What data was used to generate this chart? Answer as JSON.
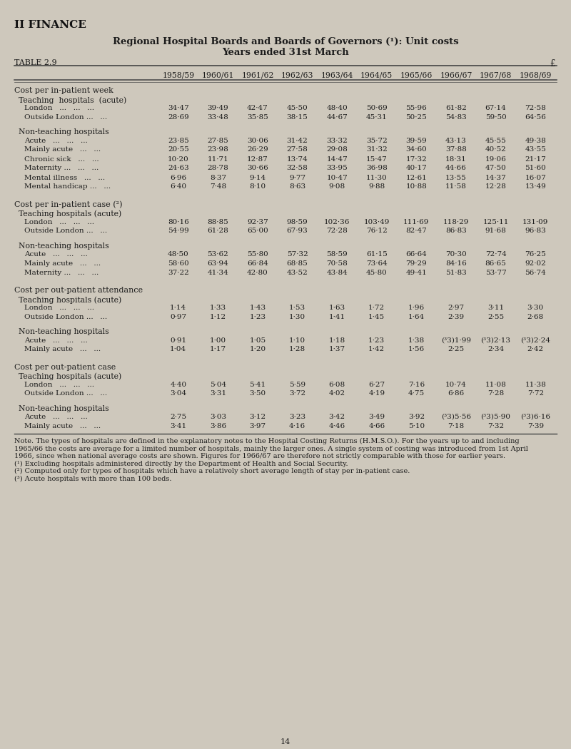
{
  "title1": "Regional Hospital Boards and Boards of Governors (¹): Unit costs",
  "title2": "Years ended 31st March",
  "table_label": "TABLE 2.9",
  "currency_symbol": "£",
  "columns": [
    "1958/59",
    "1960/61",
    "1961/62",
    "1962/63",
    "1963/64",
    "1964/65",
    "1965/66",
    "1966/67",
    "1967/68",
    "1968/69"
  ],
  "sections": [
    {
      "header": "Cost per in-patient week",
      "subsections": [
        {
          "header": "Teaching  hospitals  (acute)",
          "rows": [
            {
              "label": "London   ...   ...   ...",
              "values": [
                "34·47",
                "39·49",
                "42·47",
                "45·50",
                "48·40",
                "50·69",
                "55·96",
                "61·82",
                "67·14",
                "72·58"
              ]
            },
            {
              "label": "Outside London ...   ...",
              "values": [
                "28·69",
                "33·48",
                "35·85",
                "38·15",
                "44·67",
                "45·31",
                "50·25",
                "54·83",
                "59·50",
                "64·56"
              ]
            }
          ]
        },
        {
          "header": "Non-teaching hospitals",
          "rows": [
            {
              "label": "Acute   ...   ...   ...",
              "values": [
                "23·85",
                "27·85",
                "30·06",
                "31·42",
                "33·32",
                "35·72",
                "39·59",
                "43·13",
                "45·55",
                "49·38"
              ]
            },
            {
              "label": "Mainly acute   ...   ...",
              "values": [
                "20·55",
                "23·98",
                "26·29",
                "27·58",
                "29·08",
                "31·32",
                "34·60",
                "37·88",
                "40·52",
                "43·55"
              ]
            },
            {
              "label": "Chronic sick   ...   ...",
              "values": [
                "10·20",
                "11·71",
                "12·87",
                "13·74",
                "14·47",
                "15·47",
                "17·32",
                "18·31",
                "19·06",
                "21·17"
              ]
            },
            {
              "label": "Maternity ...   ...   ...",
              "values": [
                "24·63",
                "28·78",
                "30·66",
                "32·58",
                "33·95",
                "36·98",
                "40·17",
                "44·66",
                "47·50",
                "51·60"
              ]
            },
            {
              "label": "Mental illness   ...   ...",
              "values": [
                "6·96",
                "8·37",
                "9·14",
                "9·77",
                "10·47",
                "11·30",
                "12·61",
                "13·55",
                "14·37",
                "16·07"
              ]
            },
            {
              "label": "Mental handicap ...   ...",
              "values": [
                "6·40",
                "7·48",
                "8·10",
                "8·63",
                "9·08",
                "9·88",
                "10·88",
                "11·58",
                "12·28",
                "13·49"
              ]
            }
          ]
        }
      ]
    },
    {
      "header": "Cost per in-patient case (²)",
      "subsections": [
        {
          "header": "Teaching hospitals (acute)",
          "rows": [
            {
              "label": "London   ...   ...   ...",
              "values": [
                "80·16",
                "88·85",
                "92·37",
                "98·59",
                "102·36",
                "103·49",
                "111·69",
                "118·29",
                "125·11",
                "131·09"
              ]
            },
            {
              "label": "Outside London ...   ...",
              "values": [
                "54·99",
                "61·28",
                "65·00",
                "67·93",
                "72·28",
                "76·12",
                "82·47",
                "86·83",
                "91·68",
                "96·83"
              ]
            }
          ]
        },
        {
          "header": "Non-teaching hospitals",
          "rows": [
            {
              "label": "Acute   ...   ...   ...",
              "values": [
                "48·50",
                "53·62",
                "55·80",
                "57·32",
                "58·59",
                "61·15",
                "66·64",
                "70·30",
                "72·74",
                "76·25"
              ]
            },
            {
              "label": "Mainly acute   ...   ...",
              "values": [
                "58·60",
                "63·94",
                "66·84",
                "68·85",
                "70·58",
                "73·64",
                "79·29",
                "84·16",
                "86·65",
                "92·02"
              ]
            },
            {
              "label": "Maternity ...   ...   ...",
              "values": [
                "37·22",
                "41·34",
                "42·80",
                "43·52",
                "43·84",
                "45·80",
                "49·41",
                "51·83",
                "53·77",
                "56·74"
              ]
            }
          ]
        }
      ]
    },
    {
      "header": "Cost per out-patient attendance",
      "subsections": [
        {
          "header": "Teaching hospitals (acute)",
          "rows": [
            {
              "label": "London   ...   ...   ...",
              "values": [
                "1·14",
                "1·33",
                "1·43",
                "1·53",
                "1·63",
                "1·72",
                "1·96",
                "2·97",
                "3·11",
                "3·30"
              ]
            },
            {
              "label": "Outside London ...   ...",
              "values": [
                "0·97",
                "1·12",
                "1·23",
                "1·30",
                "1·41",
                "1·45",
                "1·64",
                "2·39",
                "2·55",
                "2·68"
              ]
            }
          ]
        },
        {
          "header": "Non-teaching hospitals",
          "rows": [
            {
              "label": "Acute   ...   ...   ...",
              "values": [
                "0·91",
                "1·00",
                "1·05",
                "1·10",
                "1·18",
                "1·23",
                "1·38",
                "(³3)1·99",
                "(³3)2·13",
                "(³3)2·24"
              ]
            },
            {
              "label": "Mainly acute   ...   ...",
              "values": [
                "1·04",
                "1·17",
                "1·20",
                "1·28",
                "1·37",
                "1·42",
                "1·56",
                "2·25",
                "2·34",
                "2·42"
              ]
            }
          ]
        }
      ]
    },
    {
      "header": "Cost per out-patient case",
      "subsections": [
        {
          "header": "Teaching hospitals (acute)",
          "rows": [
            {
              "label": "London   ...   ...   ...",
              "values": [
                "4·40",
                "5·04",
                "5·41",
                "5·59",
                "6·08",
                "6·27",
                "7·16",
                "10·74",
                "11·08",
                "11·38"
              ]
            },
            {
              "label": "Outside London ...   ...",
              "values": [
                "3·04",
                "3·31",
                "3·50",
                "3·72",
                "4·02",
                "4·19",
                "4·75",
                "6·86",
                "7·28",
                "7·72"
              ]
            }
          ]
        },
        {
          "header": "Non-teaching hospitals",
          "rows": [
            {
              "label": "Acute   ...   ...   ...",
              "values": [
                "2·75",
                "3·03",
                "3·12",
                "3·23",
                "3·42",
                "3·49",
                "3·92",
                "(³3)5·56",
                "(³3)5·90",
                "(³3)6·16"
              ]
            },
            {
              "label": "Mainly acute   ...   ...",
              "values": [
                "3·41",
                "3·86",
                "3·97",
                "4·16",
                "4·46",
                "4·66",
                "5·10",
                "7·18",
                "7·32",
                "7·39"
              ]
            }
          ]
        }
      ]
    }
  ],
  "notes": [
    "Note. The types of hospitals are defined in the explanatory notes to the Hospital Costing Returns (H.M.S.O.). For the years up to and including",
    "1965/66 the costs are average for a limited number of hospitals, mainly the larger ones. A single system of costing was introduced from 1st April",
    "1966, since when national average costs are shown. Figures for 1966/67 are therefore not strictly comparable with those for earlier years.",
    "(¹) Excluding hospitals administered directly by the Department of Health and Social Security.",
    "(²) Computed only for types of hospitals which have a relatively short average length of stay per in-patient case.",
    "(³) Acute hospitals with more than 100 beds."
  ],
  "page_number": "14",
  "bg_color": "#cec8bc",
  "text_color": "#1c1c1c",
  "line_color": "#444444"
}
